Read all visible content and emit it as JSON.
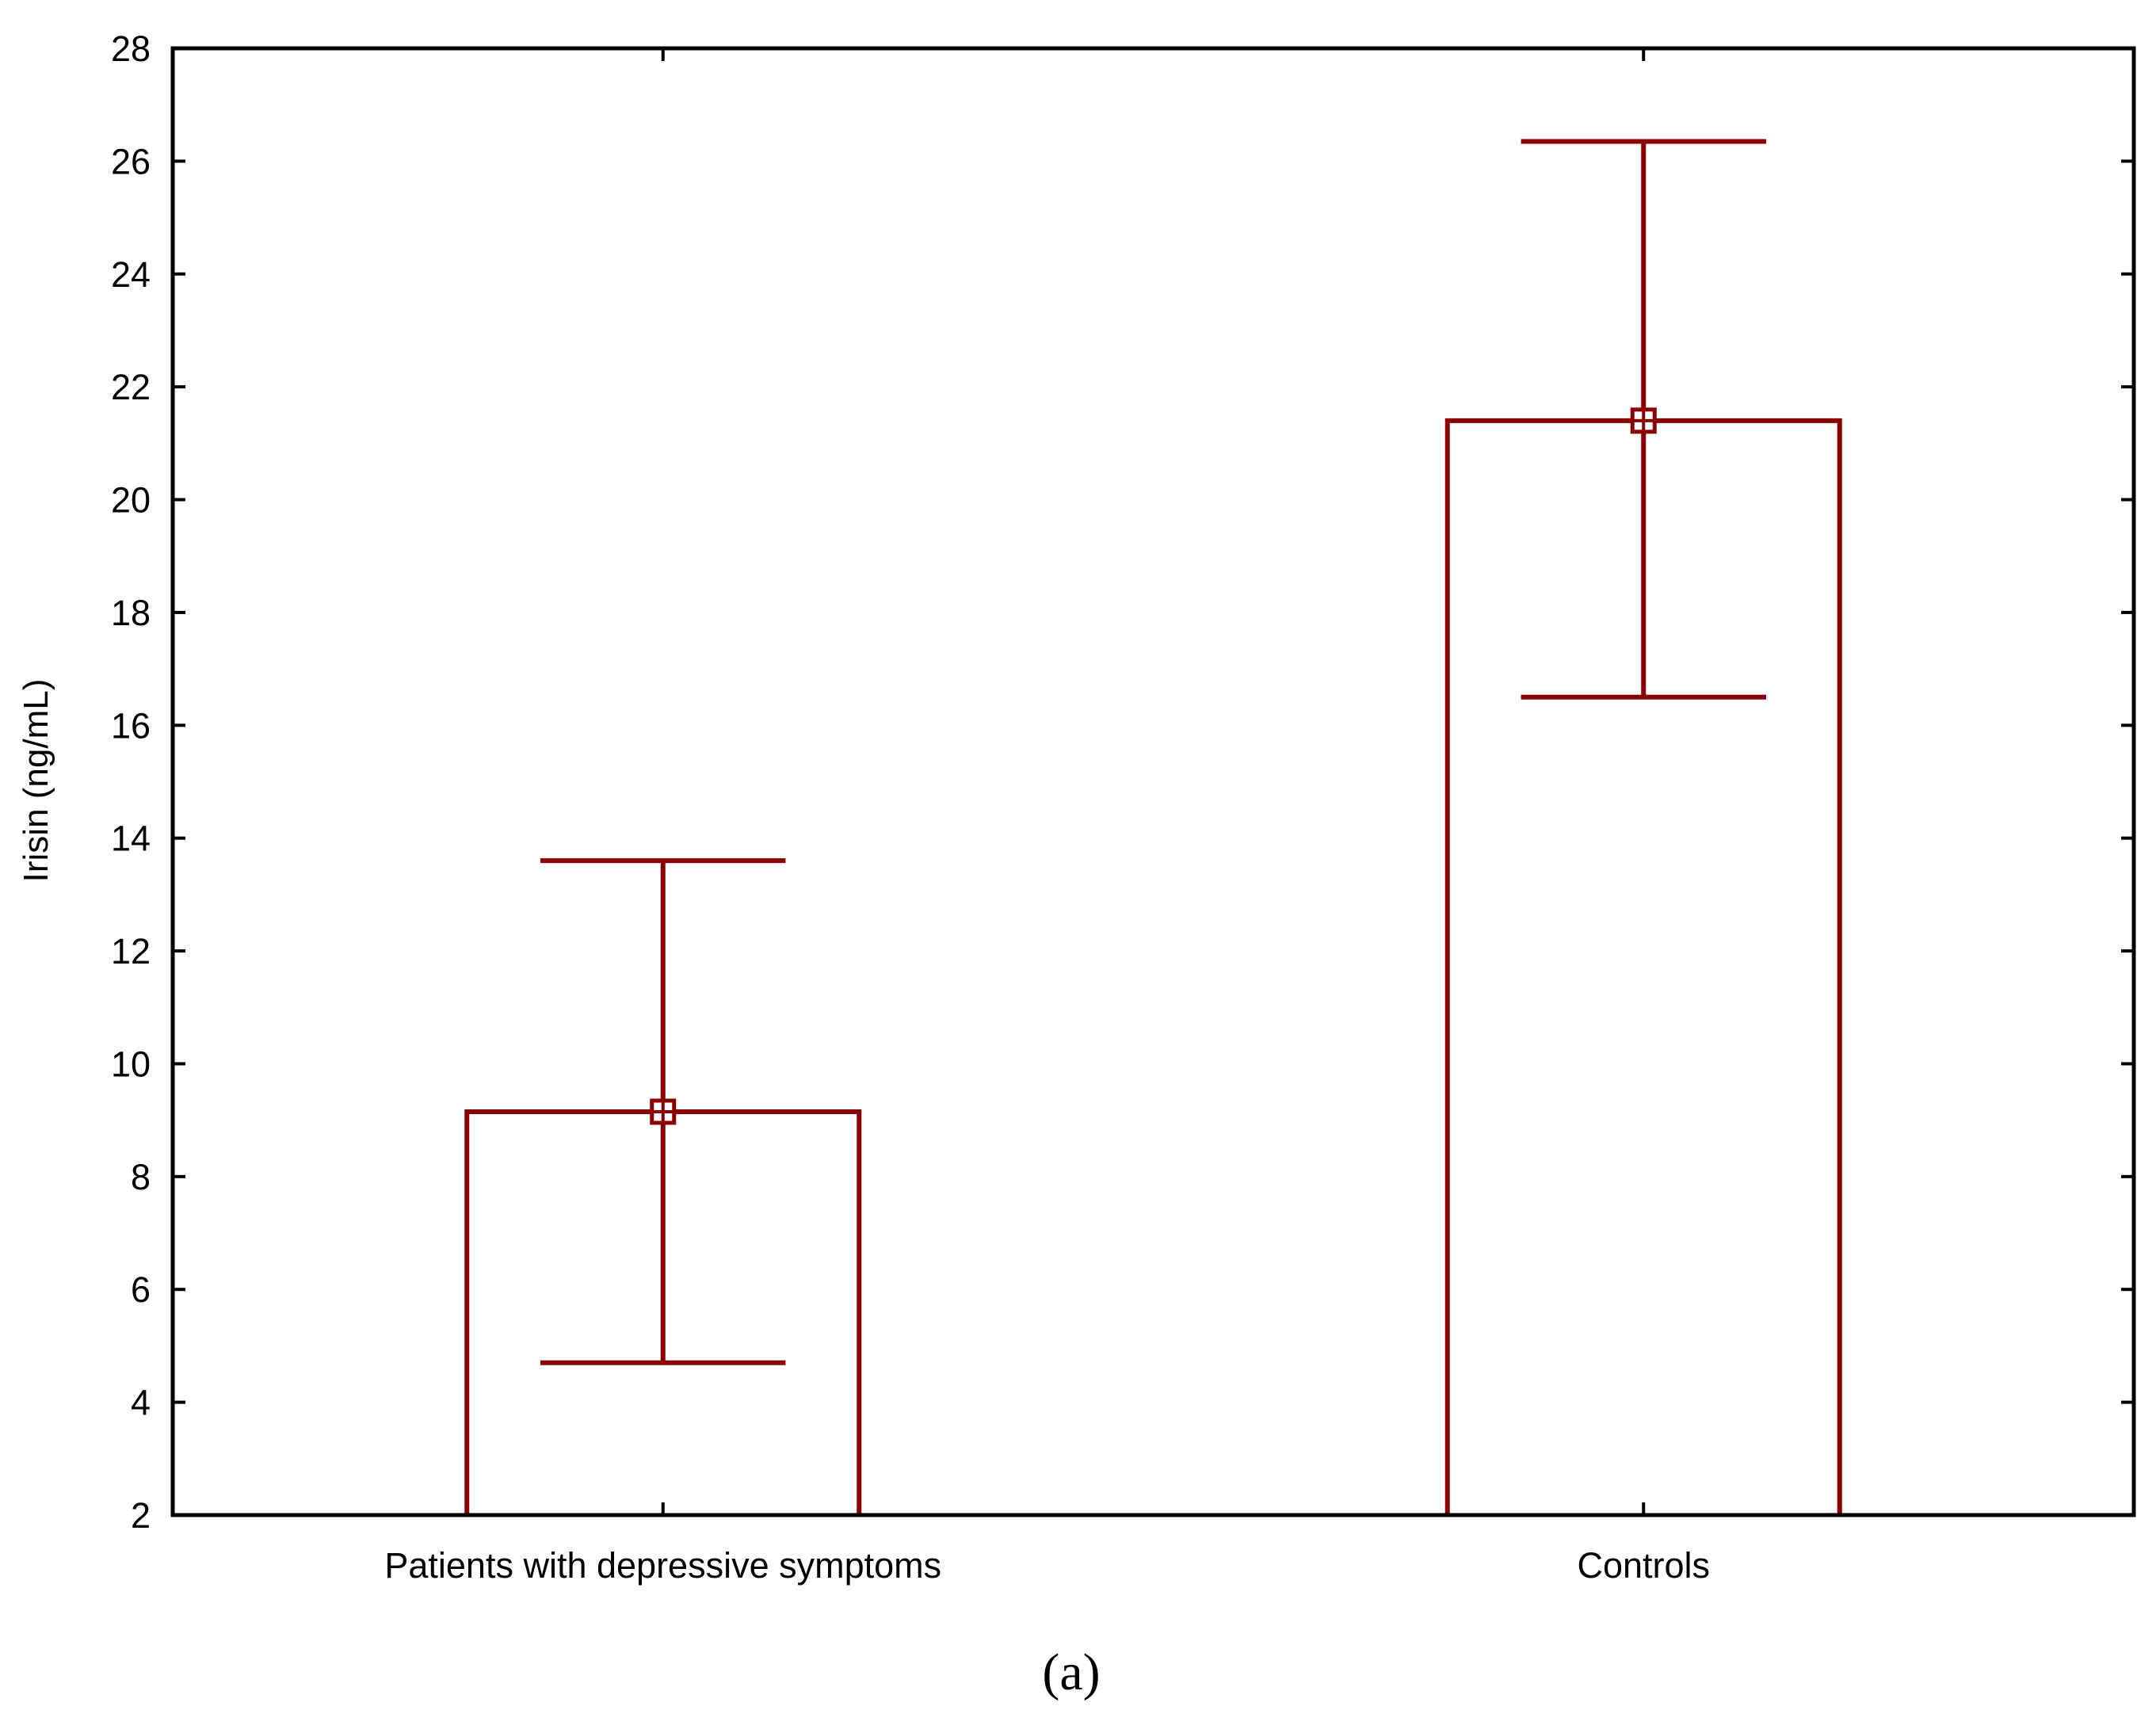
{
  "chart_data": {
    "type": "bar",
    "categories": [
      "Patients with depressive symptoms",
      "Controls"
    ],
    "series": [
      {
        "values": [
          9.15,
          21.4
        ],
        "error_low": [
          4.7,
          16.5
        ],
        "error_high": [
          13.6,
          26.35
        ]
      }
    ],
    "xlabel": "",
    "ylabel": "Irisin (ng/mL)",
    "ylim": [
      2,
      28
    ],
    "yticks": [
      2,
      4,
      6,
      8,
      10,
      12,
      14,
      16,
      18,
      20,
      22,
      24,
      26,
      28
    ],
    "grid": false,
    "legend": "none",
    "caption": "(a)",
    "colors": {
      "series": "#8b0000",
      "axis": "#000000",
      "bar_fill": "#ffffff"
    }
  }
}
